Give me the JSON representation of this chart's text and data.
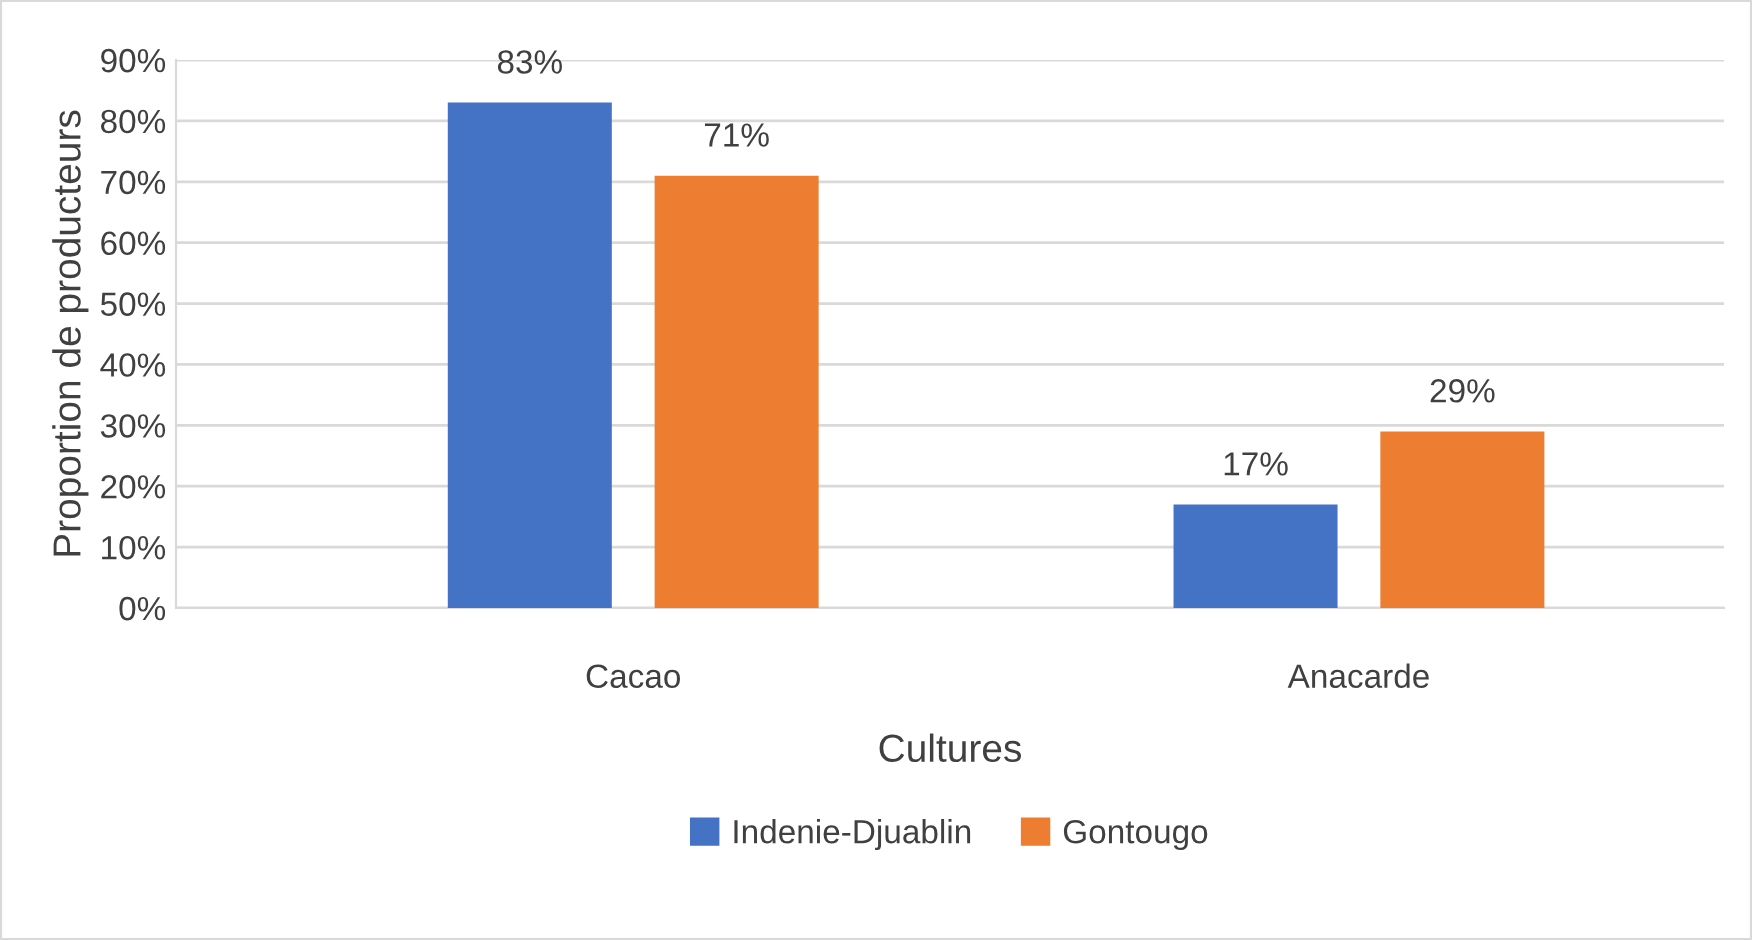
{
  "chart_data": {
    "type": "bar",
    "categories": [
      "Cacao",
      "Anacarde"
    ],
    "xlabel": "Cultures",
    "ylabel": "Proportion de producteurs",
    "series": [
      {
        "name": "Indenie-Djuablin",
        "color": "#4472c4",
        "values": [
          83,
          17
        ],
        "value_labels": [
          "83%",
          "17%"
        ]
      },
      {
        "name": "Gontougo",
        "color": "#ed7d31",
        "values": [
          71,
          29
        ],
        "value_labels": [
          "71%",
          "29%"
        ]
      }
    ],
    "ylim": [
      0,
      90
    ],
    "yticks": [
      {
        "value": 0,
        "label": "0%"
      },
      {
        "value": 10,
        "label": "10%"
      },
      {
        "value": 20,
        "label": "20%"
      },
      {
        "value": 30,
        "label": "30%"
      },
      {
        "value": 40,
        "label": "40%"
      },
      {
        "value": 50,
        "label": "50%"
      },
      {
        "value": 60,
        "label": "60%"
      },
      {
        "value": 70,
        "label": "70%"
      },
      {
        "value": 80,
        "label": "80%"
      },
      {
        "value": 90,
        "label": "90%"
      }
    ],
    "grid": "y",
    "legend": "bottom"
  }
}
